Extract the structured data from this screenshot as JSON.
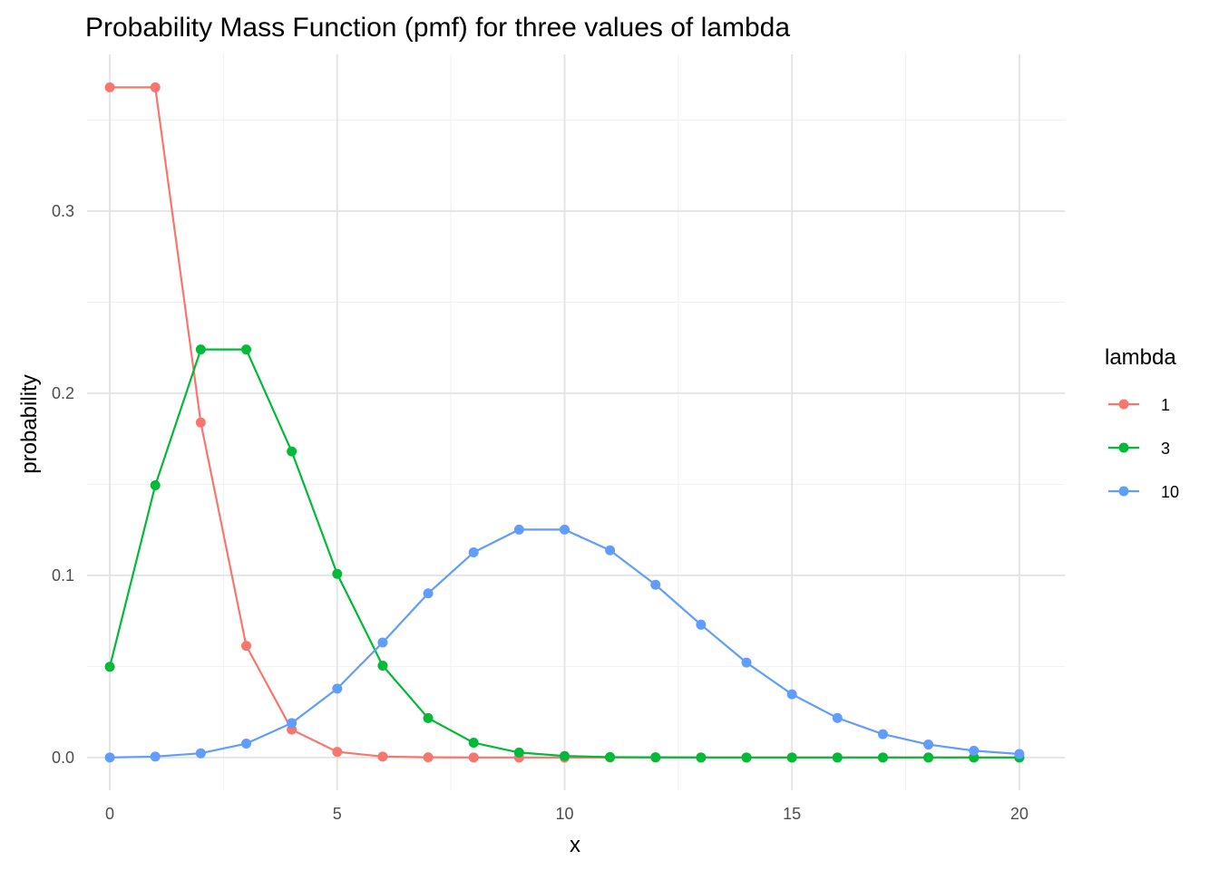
{
  "chart_data": {
    "type": "line",
    "title": "Probability Mass Function (pmf) for three values of lambda",
    "xlabel": "x",
    "ylabel": "probability",
    "xlim": [
      -0.5,
      21
    ],
    "ylim": [
      -0.018,
      0.386
    ],
    "x_ticks": [
      0,
      5,
      10,
      15,
      20
    ],
    "x_tick_labels": [
      "0",
      "5",
      "10",
      "15",
      "20"
    ],
    "y_ticks": [
      0.0,
      0.1,
      0.2,
      0.3
    ],
    "y_tick_labels": [
      "0.0",
      "0.1",
      "0.2",
      "0.3"
    ],
    "grid": true,
    "markers": true,
    "legend": {
      "title": "lambda",
      "position": "right"
    },
    "x": [
      0,
      1,
      2,
      3,
      4,
      5,
      6,
      7,
      8,
      9,
      10,
      11,
      12,
      13,
      14,
      15,
      16,
      17,
      18,
      19,
      20
    ],
    "series": [
      {
        "name": "1",
        "color": "#F8766D",
        "values": [
          0.3679,
          0.3679,
          0.1839,
          0.0613,
          0.0153,
          0.0031,
          0.0005,
          0.0001,
          0.0,
          0.0,
          0.0,
          0.0,
          0.0,
          0.0,
          0.0,
          0.0,
          0.0,
          0.0,
          0.0,
          0.0,
          0.0
        ]
      },
      {
        "name": "3",
        "color": "#00BA38",
        "values": [
          0.0498,
          0.1494,
          0.224,
          0.224,
          0.168,
          0.1008,
          0.0504,
          0.0216,
          0.0081,
          0.0027,
          0.0008,
          0.0002,
          0.0001,
          0.0,
          0.0,
          0.0,
          0.0,
          0.0,
          0.0,
          0.0,
          0.0
        ]
      },
      {
        "name": "10",
        "color": "#619CFF",
        "values": [
          0.0,
          0.0005,
          0.0023,
          0.0076,
          0.0189,
          0.0378,
          0.0631,
          0.0901,
          0.1126,
          0.1251,
          0.1251,
          0.1137,
          0.0948,
          0.0729,
          0.0521,
          0.0347,
          0.0217,
          0.0128,
          0.0071,
          0.0037,
          0.0019
        ]
      }
    ]
  }
}
